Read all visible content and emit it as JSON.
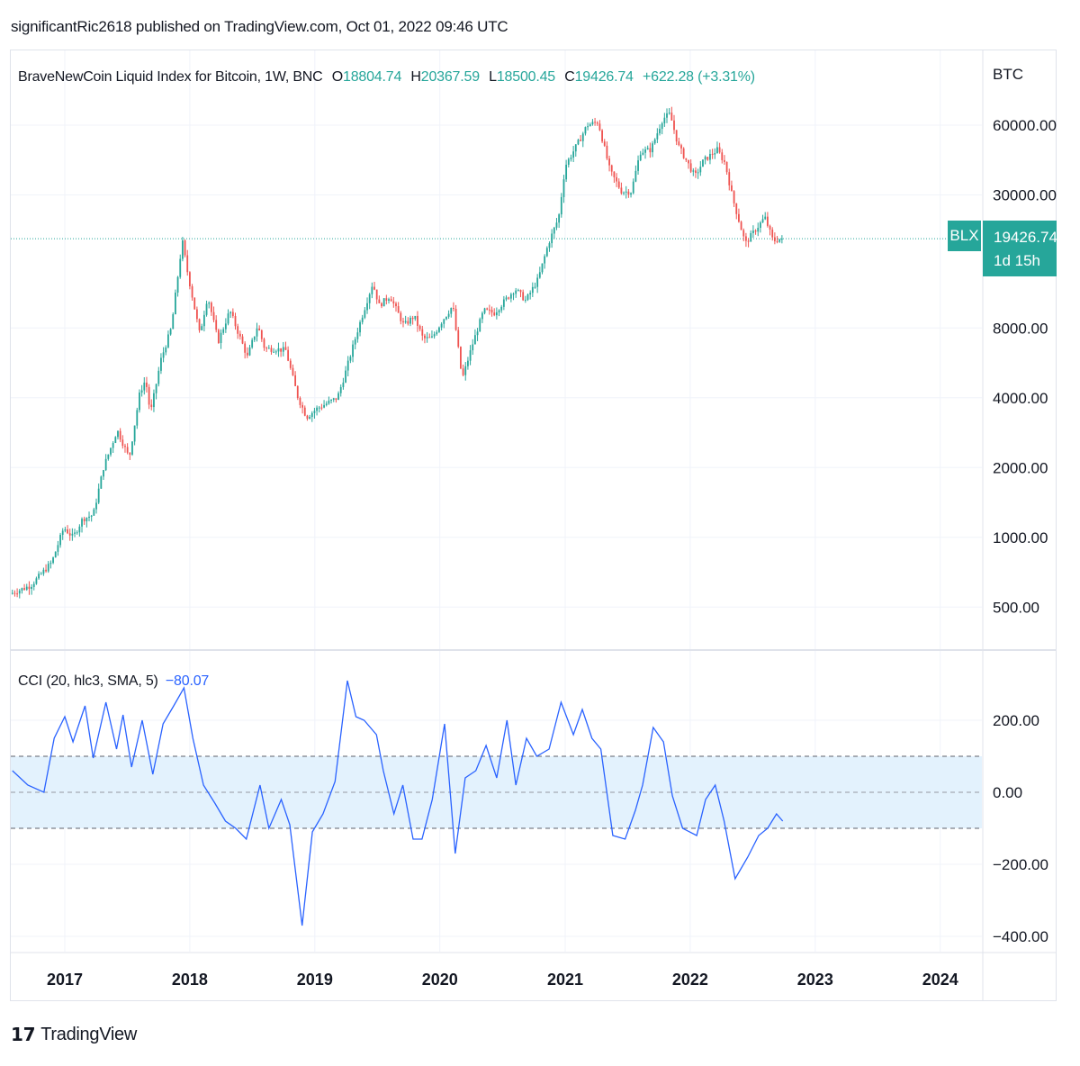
{
  "header": {
    "publisher_line": "significantRic2618 published on TradingView.com, Oct 01, 2022 09:46 UTC"
  },
  "legend": {
    "title": "BraveNewCoin Liquid Index for Bitcoin, 1W, BNC",
    "o_label": "O",
    "o_value": "18804.74",
    "h_label": "H",
    "h_value": "20367.59",
    "l_label": "L",
    "l_value": "18500.45",
    "c_label": "C",
    "c_value": "19426.74",
    "change": "+622.28 (+3.31%)"
  },
  "cci_legend": {
    "label": "CCI (20, hlc3, SMA, 5)",
    "value": "−80.07"
  },
  "price_tag": {
    "symbol": "BLX",
    "price": "19426.74",
    "countdown": "1d 15h"
  },
  "footer": {
    "brand": "TradingView"
  },
  "colors": {
    "up": "#26a69a",
    "down": "#ef5350",
    "cci_line": "#2962ff",
    "cci_band": "#e3f2fd",
    "grid": "#f0f3fa"
  },
  "chart_data": [
    {
      "type": "candlestick",
      "title": "BraveNewCoin Liquid Index for Bitcoin, 1W, BNC",
      "y_unit": "BTC",
      "y_scale": "log",
      "y_ticks": [
        "60000.00",
        "30000.00",
        "8000.00",
        "4000.00",
        "2000.00",
        "1000.00",
        "500.00"
      ],
      "x_ticks": [
        "2017",
        "2018",
        "2019",
        "2020",
        "2021",
        "2022",
        "2023",
        "2024"
      ],
      "last_price": 19426.74,
      "path": [
        [
          "2016-08-01",
          570
        ],
        [
          "2016-10-01",
          620
        ],
        [
          "2016-12-01",
          780
        ],
        [
          "2017-01-05",
          1100
        ],
        [
          "2017-02-01",
          1000
        ],
        [
          "2017-03-01",
          1200
        ],
        [
          "2017-04-01",
          1250
        ],
        [
          "2017-05-01",
          2000
        ],
        [
          "2017-06-10",
          2900
        ],
        [
          "2017-07-15",
          2200
        ],
        [
          "2017-08-15",
          4200
        ],
        [
          "2017-09-01",
          4800
        ],
        [
          "2017-09-15",
          3400
        ],
        [
          "2017-10-15",
          5800
        ],
        [
          "2017-11-15",
          8000
        ],
        [
          "2017-12-17",
          19000
        ],
        [
          "2018-01-01",
          14000
        ],
        [
          "2018-02-06",
          7500
        ],
        [
          "2018-03-01",
          11000
        ],
        [
          "2018-04-01",
          7000
        ],
        [
          "2018-05-05",
          9500
        ],
        [
          "2018-06-25",
          6000
        ],
        [
          "2018-07-25",
          8200
        ],
        [
          "2018-08-15",
          6500
        ],
        [
          "2018-09-15",
          6500
        ],
        [
          "2018-10-15",
          6400
        ],
        [
          "2018-11-20",
          4000
        ],
        [
          "2018-12-15",
          3300
        ],
        [
          "2019-01-15",
          3600
        ],
        [
          "2019-02-15",
          3800
        ],
        [
          "2019-03-15",
          4000
        ],
        [
          "2019-04-05",
          5000
        ],
        [
          "2019-05-15",
          8000
        ],
        [
          "2019-06-26",
          12500
        ],
        [
          "2019-07-15",
          10000
        ],
        [
          "2019-08-15",
          11000
        ],
        [
          "2019-09-25",
          8200
        ],
        [
          "2019-10-25",
          9000
        ],
        [
          "2019-11-20",
          7200
        ],
        [
          "2019-12-15",
          7200
        ],
        [
          "2020-01-15",
          8600
        ],
        [
          "2020-02-15",
          10000
        ],
        [
          "2020-03-13",
          4800
        ],
        [
          "2020-04-15",
          7000
        ],
        [
          "2020-05-15",
          9500
        ],
        [
          "2020-06-15",
          9300
        ],
        [
          "2020-07-28",
          11000
        ],
        [
          "2020-08-15",
          11800
        ],
        [
          "2020-09-15",
          10500
        ],
        [
          "2020-10-21",
          13000
        ],
        [
          "2020-11-20",
          18500
        ],
        [
          "2020-12-20",
          24000
        ],
        [
          "2021-01-08",
          40000
        ],
        [
          "2021-02-20",
          52000
        ],
        [
          "2021-03-13",
          60000
        ],
        [
          "2021-04-14",
          62000
        ],
        [
          "2021-05-19",
          38000
        ],
        [
          "2021-06-22",
          31000
        ],
        [
          "2021-07-20",
          31000
        ],
        [
          "2021-08-15",
          46000
        ],
        [
          "2021-09-15",
          47000
        ],
        [
          "2021-10-20",
          64000
        ],
        [
          "2021-11-10",
          67000
        ],
        [
          "2021-12-04",
          49000
        ],
        [
          "2022-01-22",
          36000
        ],
        [
          "2022-02-15",
          42000
        ],
        [
          "2022-03-28",
          47000
        ],
        [
          "2022-04-20",
          41000
        ],
        [
          "2022-05-12",
          29000
        ],
        [
          "2022-06-18",
          18500
        ],
        [
          "2022-07-15",
          21000
        ],
        [
          "2022-08-14",
          24000
        ],
        [
          "2022-09-07",
          19000
        ],
        [
          "2022-09-28",
          19426.74
        ]
      ]
    },
    {
      "type": "line",
      "title": "CCI (20, hlc3, SMA, 5)",
      "y_ticks": [
        "200.00",
        "0.00",
        "−200.00",
        "−400.00"
      ],
      "band": [
        -100,
        100
      ],
      "last_value": -80.07,
      "x": [
        "2016-08-01",
        "2016-09-15",
        "2016-11-01",
        "2016-12-01",
        "2017-01-01",
        "2017-01-25",
        "2017-03-01",
        "2017-03-25",
        "2017-05-01",
        "2017-06-01",
        "2017-06-20",
        "2017-07-15",
        "2017-08-15",
        "2017-09-15",
        "2017-10-15",
        "2017-11-15",
        "2017-12-15",
        "2018-01-10",
        "2018-02-10",
        "2018-03-15",
        "2018-04-15",
        "2018-05-15",
        "2018-06-15",
        "2018-07-25",
        "2018-08-20",
        "2018-09-25",
        "2018-10-20",
        "2018-11-25",
        "2018-12-25",
        "2019-01-25",
        "2019-03-01",
        "2019-04-06",
        "2019-05-01",
        "2019-05-25",
        "2019-06-30",
        "2019-07-20",
        "2019-08-20",
        "2019-09-15",
        "2019-10-15",
        "2019-11-10",
        "2019-12-10",
        "2020-01-15",
        "2020-02-15",
        "2020-03-15",
        "2020-04-15",
        "2020-05-15",
        "2020-06-15",
        "2020-07-15",
        "2020-08-10",
        "2020-09-10",
        "2020-10-10",
        "2020-11-15",
        "2020-12-20",
        "2021-01-25",
        "2021-02-20",
        "2021-03-20",
        "2021-04-15",
        "2021-05-20",
        "2021-06-25",
        "2021-07-25",
        "2021-08-15",
        "2021-09-15",
        "2021-10-15",
        "2021-11-10",
        "2021-12-10",
        "2022-01-20",
        "2022-02-15",
        "2022-03-15",
        "2022-04-10",
        "2022-05-12",
        "2022-06-18",
        "2022-07-20",
        "2022-08-15",
        "2022-09-10",
        "2022-09-28"
      ],
      "values": [
        60,
        20,
        0,
        150,
        210,
        140,
        240,
        95,
        250,
        120,
        215,
        70,
        200,
        50,
        190,
        240,
        290,
        150,
        20,
        -30,
        -80,
        -100,
        -130,
        20,
        -100,
        -20,
        -90,
        -370,
        -110,
        -60,
        30,
        310,
        210,
        200,
        160,
        60,
        -60,
        20,
        -130,
        -130,
        -20,
        190,
        -170,
        40,
        60,
        130,
        40,
        200,
        20,
        150,
        100,
        120,
        250,
        160,
        230,
        150,
        120,
        -120,
        -130,
        -50,
        20,
        180,
        140,
        -10,
        -100,
        -120,
        -20,
        20,
        -80,
        -240,
        -180,
        -120,
        -100,
        -60,
        -80
      ]
    }
  ]
}
